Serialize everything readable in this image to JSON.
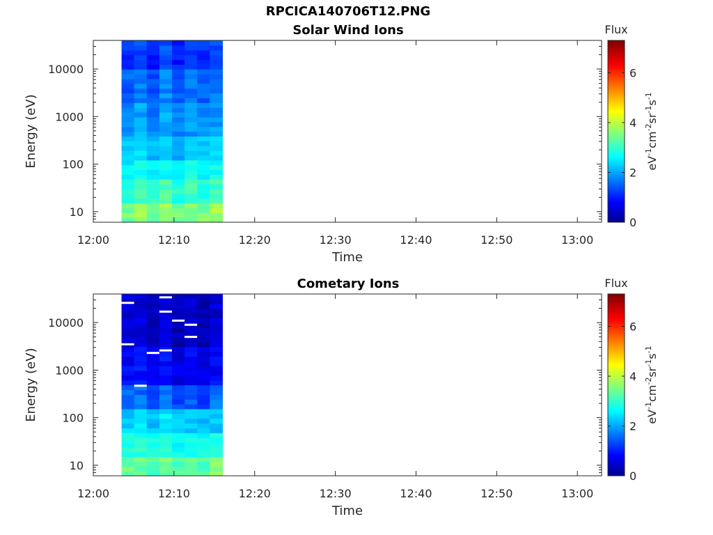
{
  "figure": {
    "filename": "RPCICA140706T12.PNG"
  },
  "chart_data": [
    {
      "type": "heatmap",
      "title": "Solar Wind Ions",
      "xlabel": "Time",
      "ylabel": "Energy (eV)",
      "x_ticks": [
        "12:00",
        "12:10",
        "12:20",
        "12:30",
        "12:40",
        "12:50",
        "13:00"
      ],
      "x_range_minutes": [
        0,
        63
      ],
      "y_scale": "log",
      "y_ticks": [
        "10",
        "100",
        "1000",
        "10000"
      ],
      "y_range": [
        6,
        40000
      ],
      "data_time_range_minutes": [
        3.5,
        16
      ],
      "colorbar": {
        "label_top": "Flux",
        "label_side": "eV-1cm-2sr-1s-1",
        "ticks": [
          "0",
          "2",
          "4",
          "6"
        ],
        "range": [
          0,
          7.3
        ],
        "colormap": "jet"
      },
      "columns": 8,
      "bands": [
        {
          "energy_range": [
            6,
            15
          ],
          "levels": [
            3.6,
            3.9,
            3.6,
            3.8,
            3.6,
            3.7,
            3.6,
            3.9
          ]
        },
        {
          "energy_range": [
            15,
            45
          ],
          "levels": [
            3.0,
            3.2,
            3.0,
            3.3,
            3.0,
            3.2,
            3.0,
            3.2
          ]
        },
        {
          "energy_range": [
            45,
            120
          ],
          "levels": [
            2.6,
            2.9,
            2.6,
            2.8,
            2.6,
            2.8,
            2.6,
            2.8
          ]
        },
        {
          "energy_range": [
            120,
            400
          ],
          "levels": [
            2.3,
            2.5,
            2.2,
            2.5,
            2.2,
            2.4,
            2.3,
            2.4
          ]
        },
        {
          "energy_range": [
            400,
            2000
          ],
          "levels": [
            1.9,
            2.1,
            1.8,
            2.2,
            1.8,
            2.0,
            1.9,
            2.0
          ]
        },
        {
          "energy_range": [
            2000,
            10000
          ],
          "levels": [
            1.6,
            1.8,
            1.5,
            1.9,
            1.5,
            1.7,
            1.6,
            1.8
          ]
        },
        {
          "energy_range": [
            10000,
            40000
          ],
          "levels": [
            1.2,
            1.4,
            1.1,
            1.5,
            1.1,
            1.3,
            1.2,
            1.4
          ]
        }
      ]
    },
    {
      "type": "heatmap",
      "title": "Cometary Ions",
      "xlabel": "Time",
      "ylabel": "Energy (eV)",
      "x_ticks": [
        "12:00",
        "12:10",
        "12:20",
        "12:30",
        "12:40",
        "12:50",
        "13:00"
      ],
      "x_range_minutes": [
        0,
        63
      ],
      "y_scale": "log",
      "y_ticks": [
        "10",
        "100",
        "1000",
        "10000"
      ],
      "y_range": [
        6,
        40000
      ],
      "data_time_range_minutes": [
        3.5,
        16
      ],
      "colorbar": {
        "label_top": "Flux",
        "label_side": "eV-1cm-2sr-1s-1",
        "ticks": [
          "0",
          "2",
          "4",
          "6"
        ],
        "range": [
          0,
          7.3
        ],
        "colormap": "jet"
      },
      "columns": 8,
      "bands": [
        {
          "energy_range": [
            6,
            15
          ],
          "levels": [
            3.5,
            3.5,
            3.3,
            3.6,
            3.3,
            3.4,
            3.3,
            3.8
          ]
        },
        {
          "energy_range": [
            15,
            45
          ],
          "levels": [
            2.9,
            3.0,
            2.8,
            3.0,
            2.8,
            2.9,
            2.8,
            2.9
          ]
        },
        {
          "energy_range": [
            45,
            150
          ],
          "levels": [
            2.4,
            2.5,
            2.3,
            2.6,
            2.3,
            2.4,
            2.3,
            2.4
          ]
        },
        {
          "energy_range": [
            150,
            500
          ],
          "levels": [
            1.6,
            1.7,
            1.5,
            1.8,
            1.4,
            1.6,
            1.4,
            1.7
          ]
        },
        {
          "energy_range": [
            500,
            3000
          ],
          "levels": [
            0.9,
            1.0,
            0.8,
            1.0,
            0.7,
            0.9,
            0.7,
            0.9
          ]
        },
        {
          "energy_range": [
            3000,
            40000
          ],
          "levels": [
            0.6,
            0.7,
            0.5,
            0.6,
            0.4,
            0.6,
            0.4,
            0.6
          ]
        }
      ],
      "missing_energies": [
        34000,
        26000,
        17000,
        11000,
        9000,
        5000,
        3500,
        2600,
        2300,
        470
      ]
    }
  ]
}
